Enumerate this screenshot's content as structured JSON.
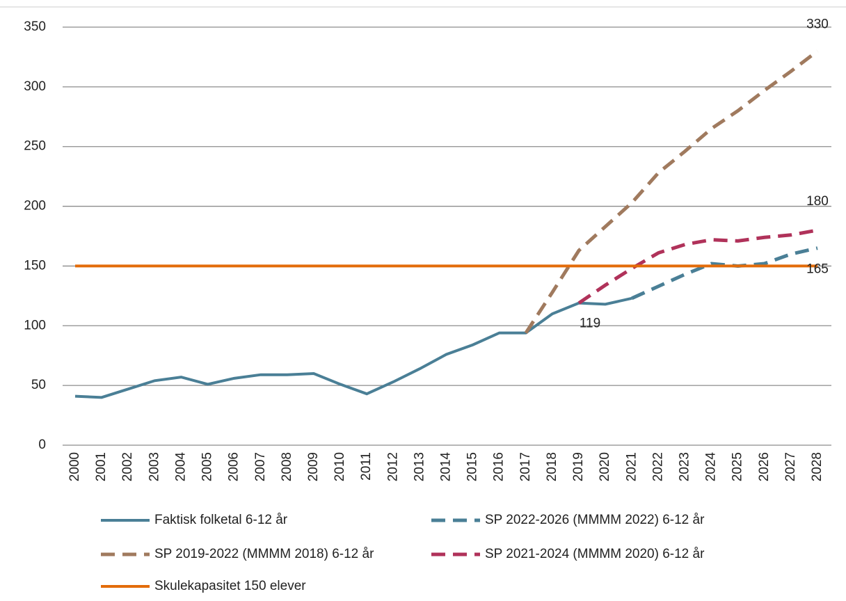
{
  "chart_data": {
    "type": "line",
    "categories": [
      "2000",
      "2001",
      "2002",
      "2003",
      "2004",
      "2005",
      "2006",
      "2007",
      "2008",
      "2009",
      "2010",
      "2011",
      "2012",
      "2013",
      "2014",
      "2015",
      "2016",
      "2017",
      "2018",
      "2019",
      "2020",
      "2021",
      "2022",
      "2023",
      "2024",
      "2025",
      "2026",
      "2027",
      "2028"
    ],
    "ylim": [
      0,
      350
    ],
    "yticks": [
      0,
      50,
      100,
      150,
      200,
      250,
      300,
      350
    ],
    "grid": true,
    "legend": "bottom",
    "series": [
      {
        "name": "Faktisk folketal 6-12 år",
        "color": "#4a7f96",
        "dashed": false,
        "values": [
          41,
          40,
          47,
          54,
          57,
          51,
          56,
          59,
          59,
          60,
          51,
          43,
          53,
          64,
          76,
          84,
          94,
          94,
          110,
          119,
          118,
          123,
          null,
          null,
          null,
          null,
          null,
          null,
          null
        ]
      },
      {
        "name": "SP 2022-2026 (MMMM 2022) 6-12 år",
        "color": "#4a7f96",
        "dashed": true,
        "values": [
          null,
          null,
          null,
          null,
          null,
          null,
          null,
          null,
          null,
          null,
          null,
          null,
          null,
          null,
          null,
          null,
          null,
          null,
          null,
          null,
          null,
          123,
          133,
          143,
          152,
          150,
          152,
          160,
          165
        ]
      },
      {
        "name": "SP 2019-2022 (MMMM 2018) 6-12 år",
        "color": "#a07a5e",
        "dashed": true,
        "values": [
          null,
          null,
          null,
          null,
          null,
          null,
          null,
          null,
          null,
          null,
          null,
          null,
          null,
          null,
          null,
          null,
          null,
          94,
          128,
          163,
          183,
          203,
          228,
          246,
          265,
          280,
          297,
          313,
          330
        ]
      },
      {
        "name": "SP 2021-2024 (MMMM 2020) 6-12 år",
        "color": "#b0325a",
        "dashed": true,
        "values": [
          null,
          null,
          null,
          null,
          null,
          null,
          null,
          null,
          null,
          null,
          null,
          null,
          null,
          null,
          null,
          null,
          null,
          null,
          null,
          119,
          134,
          148,
          161,
          168,
          172,
          171,
          174,
          176,
          180
        ]
      },
      {
        "name": "Skulekapasitet 150 elever",
        "color": "#e36c0a",
        "dashed": false,
        "values": [
          150,
          150,
          150,
          150,
          150,
          150,
          150,
          150,
          150,
          150,
          150,
          150,
          150,
          150,
          150,
          150,
          150,
          150,
          150,
          150,
          150,
          150,
          150,
          150,
          150,
          150,
          150,
          150,
          150
        ]
      }
    ]
  }
}
